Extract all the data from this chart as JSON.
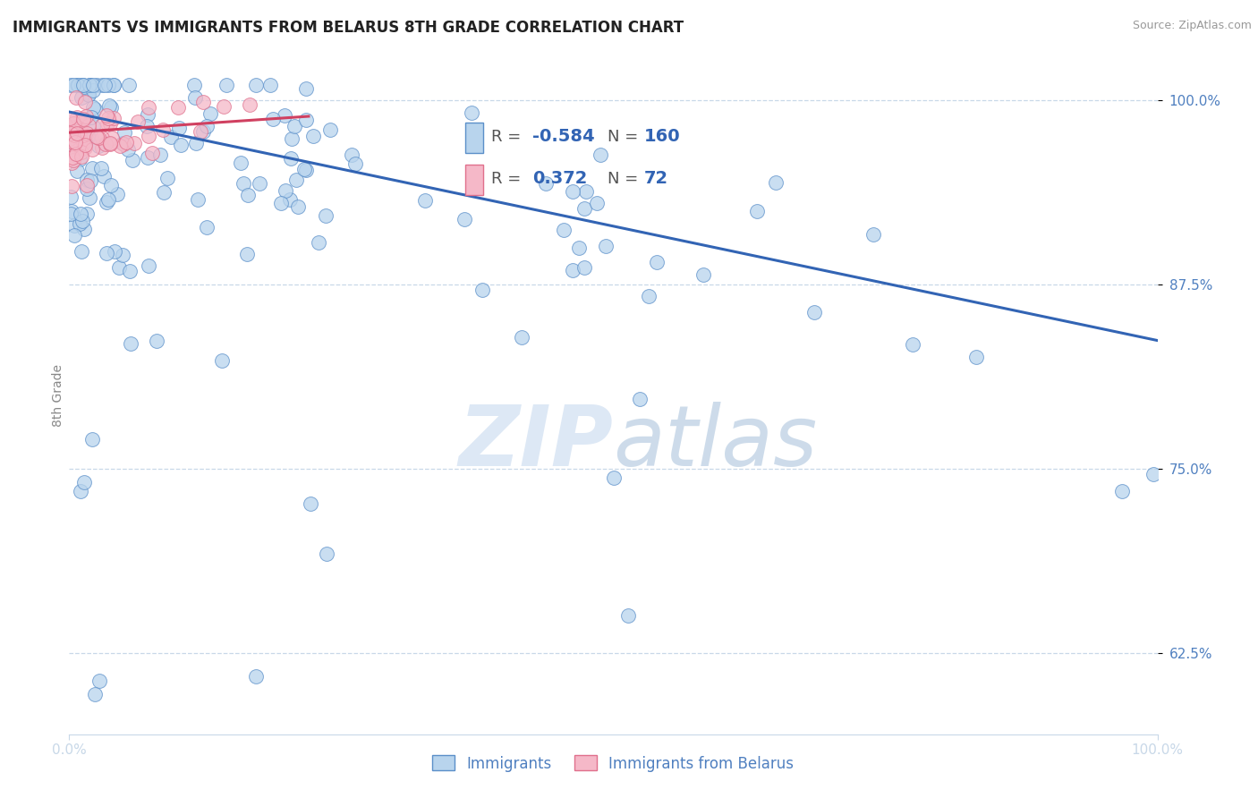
{
  "title": "IMMIGRANTS VS IMMIGRANTS FROM BELARUS 8TH GRADE CORRELATION CHART",
  "source_text": "Source: ZipAtlas.com",
  "ylabel": "8th Grade",
  "y_tick_values": [
    0.625,
    0.75,
    0.875,
    1.0
  ],
  "y_tick_labels": [
    "62.5%",
    "75.0%",
    "87.5%",
    "100.0%"
  ],
  "xlim": [
    0.0,
    1.0
  ],
  "ylim": [
    0.57,
    1.03
  ],
  "x_tick_positions": [
    0.0,
    1.0
  ],
  "x_tick_labels": [
    "0.0%",
    "100.0%"
  ],
  "legend_label_blue": "Immigrants",
  "legend_label_pink": "Immigrants from Belarus",
  "blue_R": "-0.584",
  "blue_N": "160",
  "pink_R": "0.372",
  "pink_N": "72",
  "blue_scatter_color": "#b8d4ed",
  "blue_edge_color": "#5b8fc9",
  "blue_line_color": "#3264b4",
  "pink_scatter_color": "#f5b8c8",
  "pink_edge_color": "#e0708c",
  "pink_line_color": "#d04060",
  "grid_color": "#c8d8e8",
  "tick_color": "#5080c0",
  "title_color": "#222222",
  "source_color": "#999999",
  "ylabel_color": "#888888",
  "watermark_color": "#dde8f5",
  "background_color": "#ffffff",
  "legend_box_color": "#f0f5fc",
  "legend_border_color": "#c8d8ee",
  "title_fontsize": 12,
  "source_fontsize": 9,
  "tick_fontsize": 11,
  "legend_fontsize": 14,
  "ylabel_fontsize": 10
}
